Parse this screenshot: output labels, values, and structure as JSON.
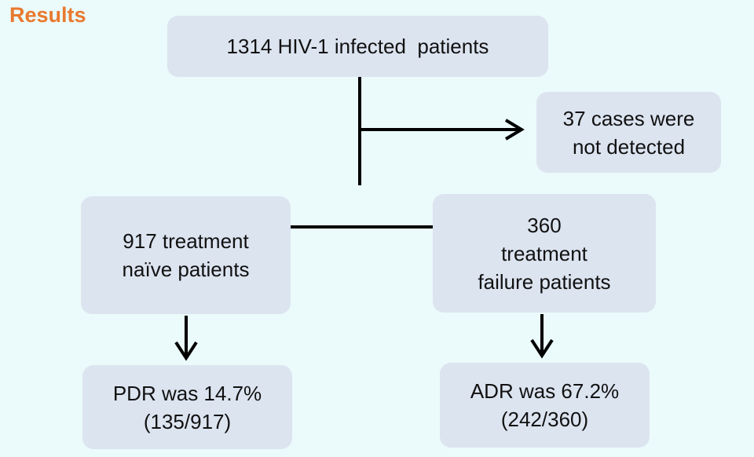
{
  "title": "Results",
  "nodes": [
    {
      "lines": [
        "1314 HIV-1 infected  patients"
      ]
    },
    {
      "lines": [
        "37 cases were",
        "not detected"
      ]
    },
    {
      "lines": [
        "917 treatment",
        "naïve patients"
      ]
    },
    {
      "lines": [
        "360",
        "treatment",
        "failure patients"
      ]
    },
    {
      "lines": [
        "PDR was 14.7%",
        "(135/917)"
      ]
    },
    {
      "lines": [
        "ADR was 67.2%",
        "(242/360)"
      ]
    }
  ]
}
